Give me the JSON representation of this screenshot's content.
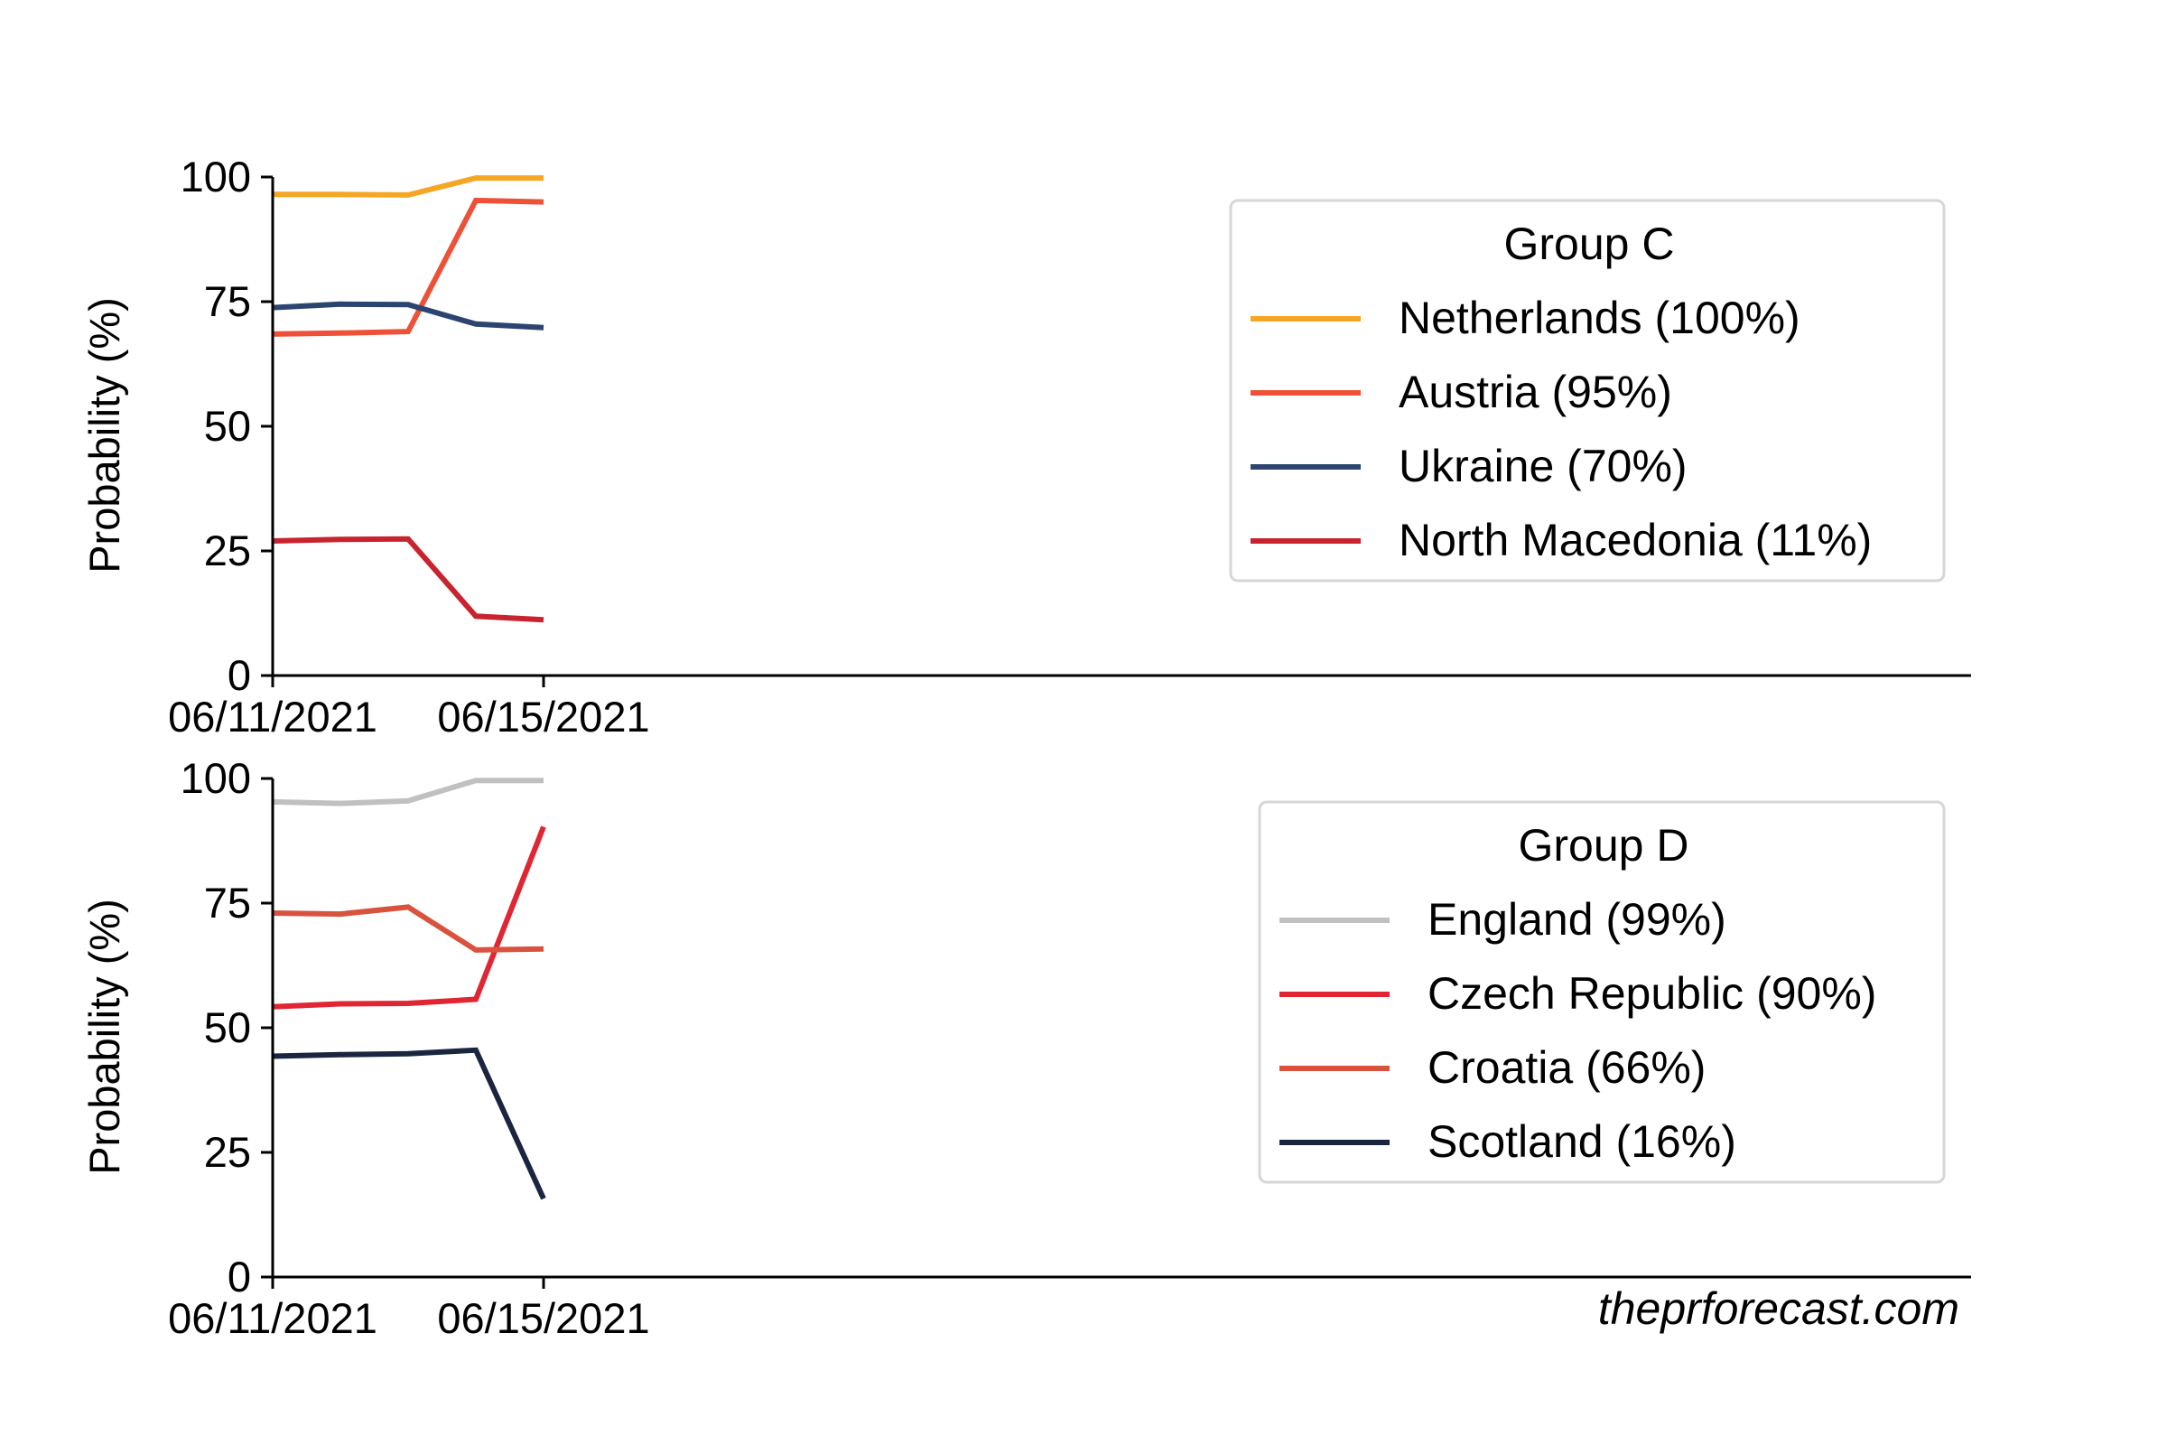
{
  "chart_data": [
    {
      "type": "line",
      "title": "",
      "xlabel": "",
      "ylabel": "Probability (%)",
      "x": [
        "06/11/2021",
        "06/12/2021",
        "06/13/2021",
        "06/14/2021",
        "06/15/2021"
      ],
      "xticks": [
        "06/11/2021",
        "06/15/2021"
      ],
      "yticks": [
        0,
        25,
        50,
        75,
        100
      ],
      "ylim": [
        0,
        100
      ],
      "grid": false,
      "legend": {
        "title": "Group C",
        "placement": "upper-right"
      },
      "series": [
        {
          "name": "Netherlands (100%)",
          "color": "#F5A623",
          "values": [
            96.5,
            96.5,
            96.4,
            99.8,
            99.8
          ]
        },
        {
          "name": "Austria (95%)",
          "color": "#EE5138",
          "values": [
            68.5,
            68.7,
            69.0,
            95.3,
            95.0
          ]
        },
        {
          "name": "Ukraine (70%)",
          "color": "#2B4570",
          "values": [
            73.8,
            74.5,
            74.4,
            70.5,
            69.8
          ]
        },
        {
          "name": "North Macedonia (11%)",
          "color": "#C8242F",
          "values": [
            27.0,
            27.3,
            27.4,
            11.9,
            11.2
          ]
        }
      ]
    },
    {
      "type": "line",
      "title": "",
      "xlabel": "",
      "ylabel": "Probability (%)",
      "x": [
        "06/11/2021",
        "06/12/2021",
        "06/13/2021",
        "06/14/2021",
        "06/15/2021"
      ],
      "xticks": [
        "06/11/2021",
        "06/15/2021"
      ],
      "yticks": [
        0,
        25,
        50,
        75,
        100
      ],
      "ylim": [
        0,
        100
      ],
      "grid": false,
      "legend": {
        "title": "Group D",
        "placement": "right"
      },
      "series": [
        {
          "name": "England (99%)",
          "color": "#C0C0C0",
          "values": [
            95.3,
            95.0,
            95.5,
            99.6,
            99.6
          ]
        },
        {
          "name": "Czech Republic (90%)",
          "color": "#E02632",
          "values": [
            54.2,
            54.8,
            54.9,
            55.7,
            90.3
          ]
        },
        {
          "name": "Croatia (66%)",
          "color": "#D9523E",
          "values": [
            73.0,
            72.8,
            74.2,
            65.6,
            65.8
          ]
        },
        {
          "name": "Scotland (16%)",
          "color": "#1A2640",
          "values": [
            44.3,
            44.6,
            44.8,
            45.5,
            15.7
          ]
        }
      ]
    }
  ],
  "watermark": "theprforecast.com"
}
